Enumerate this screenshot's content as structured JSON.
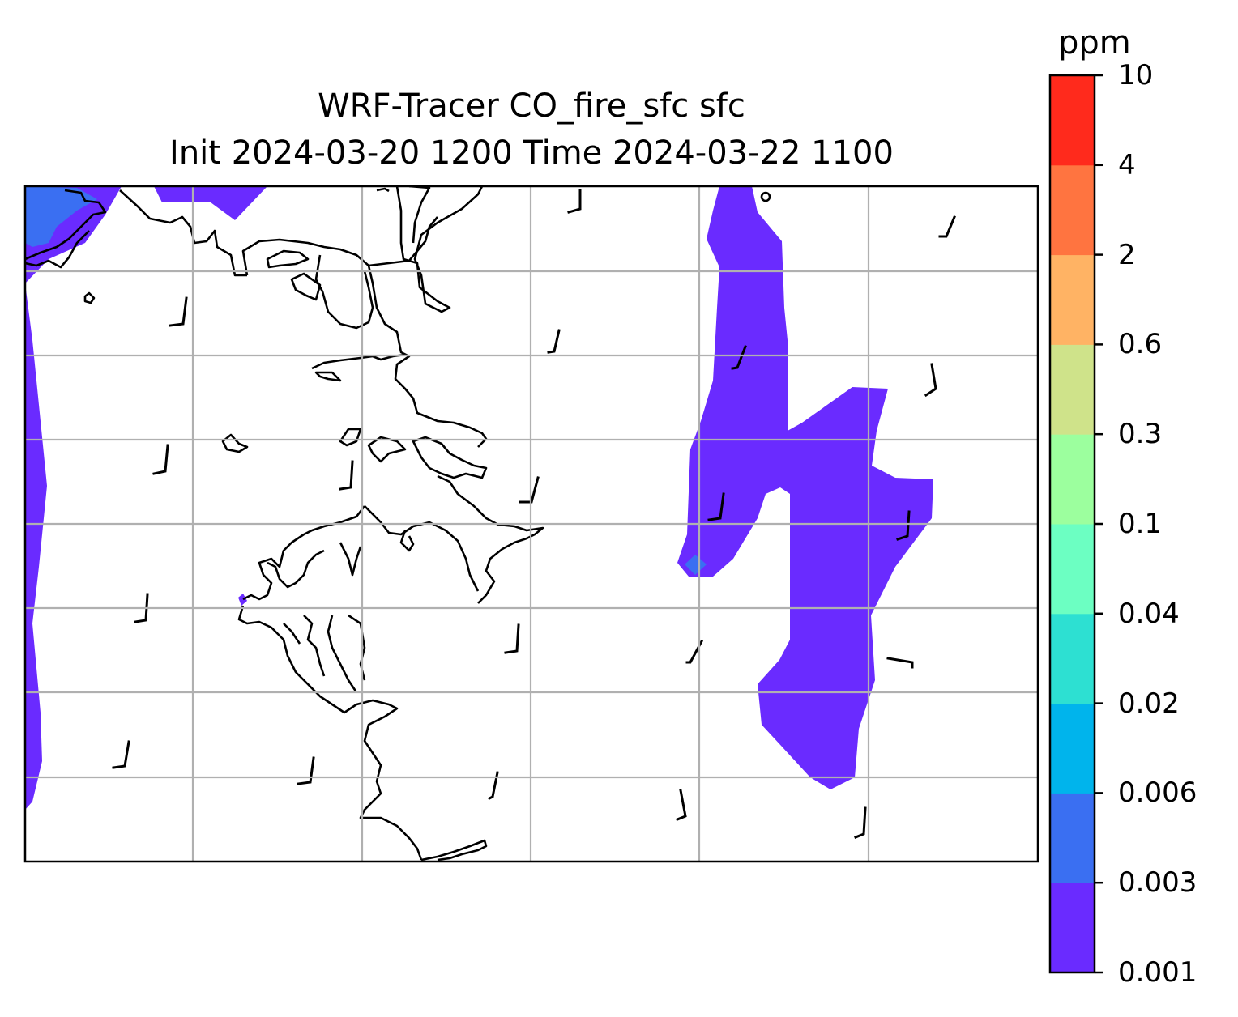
{
  "title": {
    "line1": "WRF-Tracer CO_fire_sfc sfc",
    "line2": "Init 2024-03-20 1200 Time 2024-03-22 1100"
  },
  "colorbar": {
    "unit_label": "ppm",
    "levels": [
      "0.001",
      "0.003",
      "0.006",
      "0.02",
      "0.04",
      "0.1",
      "0.3",
      "0.6",
      "2",
      "4",
      "10"
    ],
    "colors": [
      "#6a2bff",
      "#3a6ff2",
      "#00b4ec",
      "#2de0d2",
      "#6cffc2",
      "#9cff9e",
      "#cfe38a",
      "#ffb364",
      "#ff7440",
      "#ff2a1c"
    ]
  },
  "map": {
    "fill_low": "#6a2bff",
    "fill_mid": "#3a6ff2",
    "grid_color": "#b0b0b0",
    "coast_color": "#000000"
  }
}
